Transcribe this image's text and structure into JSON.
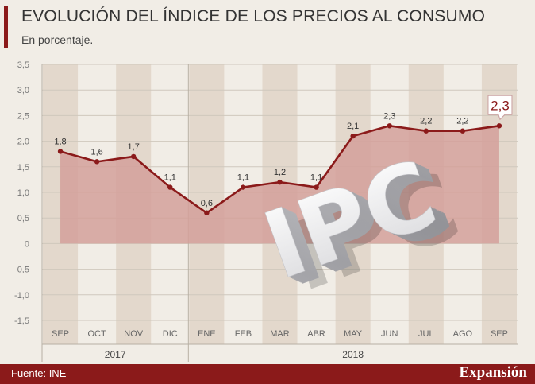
{
  "title": "EVOLUCIÓN DEL ÍNDICE DE LOS PRECIOS AL CONSUMO",
  "subtitle": "En porcentaje.",
  "source": "Fuente: INE",
  "brand": "Expansión",
  "watermark_text": "IPC",
  "colors": {
    "line": "#8b1a1a",
    "area": "#d3a09a",
    "band": "#e3d8cc",
    "background": "#f1ede6",
    "footer": "#8b1a1a"
  },
  "chart_data": {
    "type": "area",
    "categories": [
      "SEP",
      "OCT",
      "NOV",
      "DIC",
      "ENE",
      "FEB",
      "MAR",
      "ABR",
      "MAY",
      "JUN",
      "JUL",
      "AGO",
      "SEP"
    ],
    "values": [
      1.8,
      1.6,
      1.7,
      1.1,
      0.6,
      1.1,
      1.2,
      1.1,
      2.1,
      2.3,
      2.2,
      2.2,
      2.3
    ],
    "data_labels": [
      "1,8",
      "1,6",
      "1,7",
      "1,1",
      "0,6",
      "1,1",
      "1,2",
      "1,1",
      "2,1",
      "2,3",
      "2,2",
      "2,2",
      "2,3"
    ],
    "y_ticks": [
      3.5,
      3.0,
      2.5,
      2.0,
      1.5,
      1.0,
      0.5,
      0,
      -0.5,
      -1.0,
      -1.5
    ],
    "y_tick_labels": [
      "3,5",
      "3,0",
      "2,5",
      "2,0",
      "1,5",
      "1,0",
      "0,5",
      "0",
      "-0,5",
      "-1,0",
      "-1,5"
    ],
    "ylim": [
      -1.5,
      3.5
    ],
    "year_groups": [
      {
        "label": "2017",
        "start": 0,
        "end": 3
      },
      {
        "label": "2018",
        "start": 4,
        "end": 12
      }
    ],
    "highlight_index": 12,
    "grid": true
  }
}
